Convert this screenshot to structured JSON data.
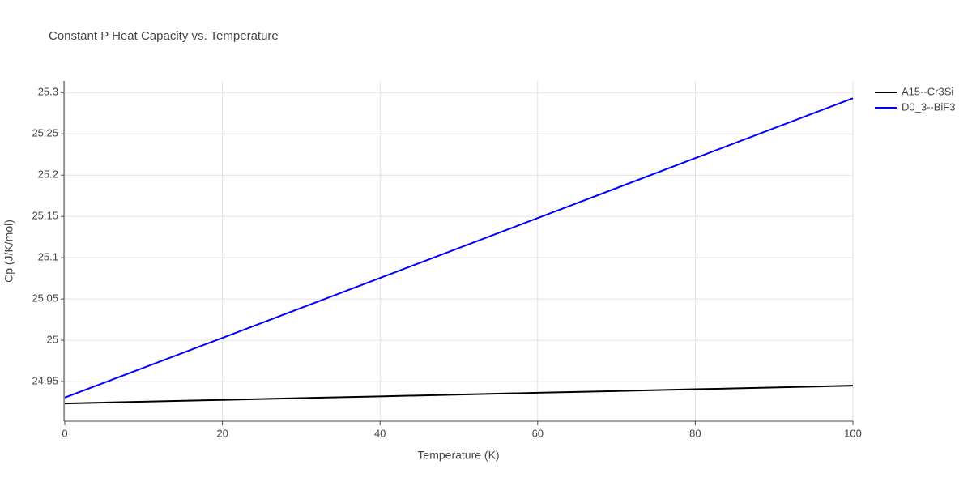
{
  "chart_data": {
    "type": "line",
    "title": "Constant P Heat Capacity vs. Temperature",
    "x_label": "Temperature (K)",
    "y_label": "Cp (J/K/mol)",
    "x": [
      0,
      20,
      40,
      60,
      80,
      100
    ],
    "series": [
      {
        "name": "A15--Cr3Si",
        "color": "#000000",
        "values": [
          24.9235,
          24.9278,
          24.9321,
          24.9364,
          24.9407,
          24.945
        ]
      },
      {
        "name": "D0_3--BiF3",
        "color": "#0000ff",
        "values": [
          24.9306,
          25.0029,
          25.0755,
          25.148,
          25.2206,
          25.2931
        ]
      }
    ],
    "xlim": [
      0,
      100
    ],
    "xticks": [
      0,
      20,
      40,
      60,
      80,
      100
    ],
    "ylim": [
      24.902,
      25.314
    ],
    "yticks": [
      24.95,
      25,
      25.05,
      25.1,
      25.15,
      25.2,
      25.25,
      25.3
    ],
    "grid": true,
    "legend": "right"
  }
}
